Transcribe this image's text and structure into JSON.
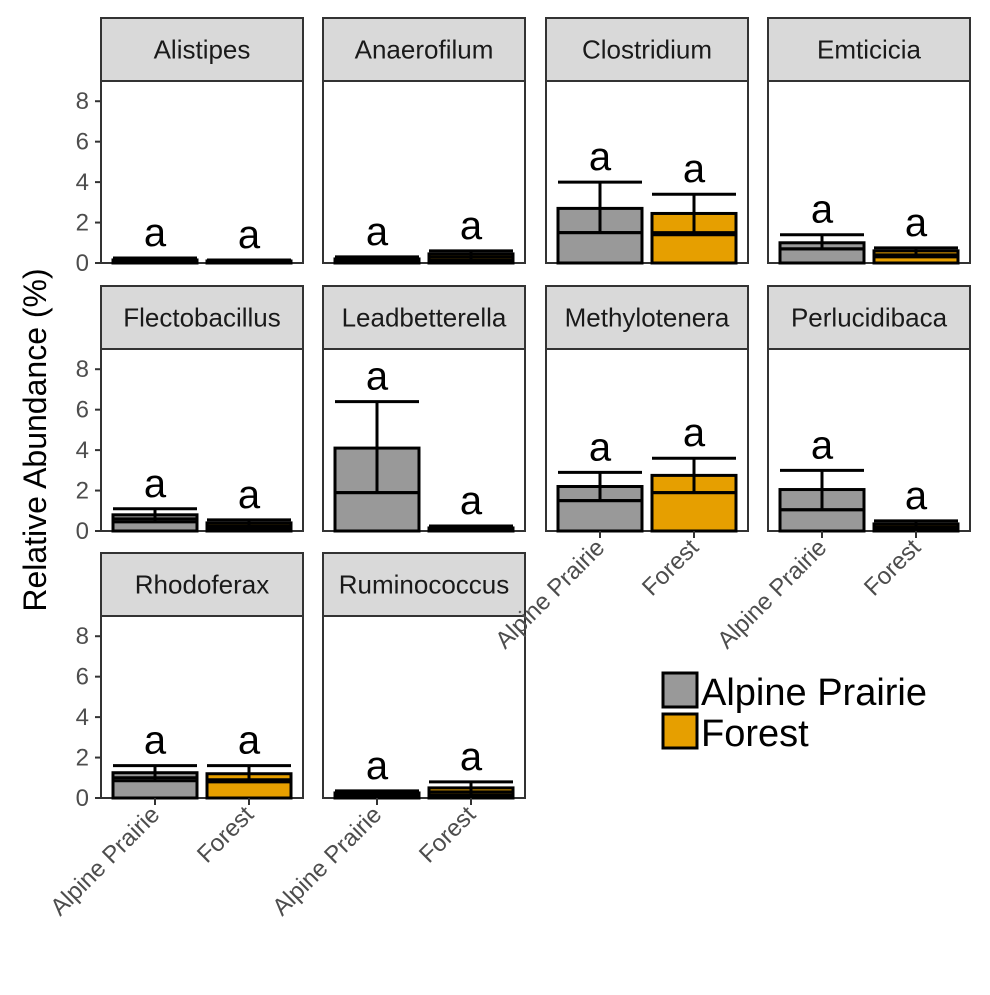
{
  "chart_data": {
    "type": "bar",
    "ylabel": "Relative Abundance (%)",
    "ylim": [
      0,
      9
    ],
    "yticks": [
      0,
      2,
      4,
      6,
      8
    ],
    "groups": [
      "Alpine Prairie",
      "Forest"
    ],
    "colors": {
      "Alpine Prairie": "#999999",
      "Forest": "#E69F00"
    },
    "legend": {
      "position": "bottom-right",
      "entries": [
        "Alpine Prairie",
        "Forest"
      ]
    },
    "grid": false,
    "panels": [
      {
        "genus": "Alistipes",
        "bars": [
          {
            "group": "Alpine Prairie",
            "value": 0.15,
            "median": 0.1,
            "err_low": 0.05,
            "err_high": 0.25,
            "label": "a"
          },
          {
            "group": "Forest",
            "value": 0.1,
            "median": 0.08,
            "err_low": 0.04,
            "err_high": 0.15,
            "label": "a"
          }
        ]
      },
      {
        "genus": "Anaerofilum",
        "bars": [
          {
            "group": "Alpine Prairie",
            "value": 0.2,
            "median": 0.12,
            "err_low": 0.05,
            "err_high": 0.3,
            "label": "a"
          },
          {
            "group": "Forest",
            "value": 0.45,
            "median": 0.3,
            "err_low": 0.15,
            "err_high": 0.6,
            "label": "a"
          }
        ]
      },
      {
        "genus": "Clostridium",
        "bars": [
          {
            "group": "Alpine Prairie",
            "value": 2.7,
            "median": 1.5,
            "err_low": 1.5,
            "err_high": 4.0,
            "label": "a"
          },
          {
            "group": "Forest",
            "value": 2.45,
            "median": 1.5,
            "err_low": 1.4,
            "err_high": 3.4,
            "label": "a"
          }
        ]
      },
      {
        "genus": "Emticicia",
        "bars": [
          {
            "group": "Alpine Prairie",
            "value": 1.0,
            "median": 0.7,
            "err_low": 0.7,
            "err_high": 1.4,
            "label": "a"
          },
          {
            "group": "Forest",
            "value": 0.6,
            "median": 0.4,
            "err_low": 0.3,
            "err_high": 0.75,
            "label": "a"
          }
        ]
      },
      {
        "genus": "Flectobacillus",
        "bars": [
          {
            "group": "Alpine Prairie",
            "value": 0.8,
            "median": 0.6,
            "err_low": 0.45,
            "err_high": 1.1,
            "label": "a"
          },
          {
            "group": "Forest",
            "value": 0.4,
            "median": 0.25,
            "err_low": 0.15,
            "err_high": 0.55,
            "label": "a"
          }
        ]
      },
      {
        "genus": "Leadbetterella",
        "bars": [
          {
            "group": "Alpine Prairie",
            "value": 4.1,
            "median": 1.9,
            "err_low": 1.9,
            "err_high": 6.4,
            "label": "a"
          },
          {
            "group": "Forest",
            "value": 0.15,
            "median": 0.1,
            "err_low": 0.05,
            "err_high": 0.25,
            "label": "a"
          }
        ]
      },
      {
        "genus": "Methylotenera",
        "bars": [
          {
            "group": "Alpine Prairie",
            "value": 2.2,
            "median": 1.5,
            "err_low": 1.5,
            "err_high": 2.9,
            "label": "a"
          },
          {
            "group": "Forest",
            "value": 2.75,
            "median": 1.9,
            "err_low": 1.9,
            "err_high": 3.6,
            "label": "a"
          }
        ]
      },
      {
        "genus": "Perlucidibaca",
        "bars": [
          {
            "group": "Alpine Prairie",
            "value": 2.05,
            "median": 1.05,
            "err_low": 1.05,
            "err_high": 3.0,
            "label": "a"
          },
          {
            "group": "Forest",
            "value": 0.35,
            "median": 0.2,
            "err_low": 0.1,
            "err_high": 0.5,
            "label": "a"
          }
        ]
      },
      {
        "genus": "Rhodoferax",
        "bars": [
          {
            "group": "Alpine Prairie",
            "value": 1.25,
            "median": 1.0,
            "err_low": 0.85,
            "err_high": 1.6,
            "label": "a"
          },
          {
            "group": "Forest",
            "value": 1.2,
            "median": 0.9,
            "err_low": 0.8,
            "err_high": 1.6,
            "label": "a"
          }
        ]
      },
      {
        "genus": "Ruminococcus",
        "bars": [
          {
            "group": "Alpine Prairie",
            "value": 0.25,
            "median": 0.15,
            "err_low": 0.05,
            "err_high": 0.35,
            "label": "a"
          },
          {
            "group": "Forest",
            "value": 0.5,
            "median": 0.3,
            "err_low": 0.15,
            "err_high": 0.8,
            "label": "a"
          }
        ]
      }
    ]
  }
}
